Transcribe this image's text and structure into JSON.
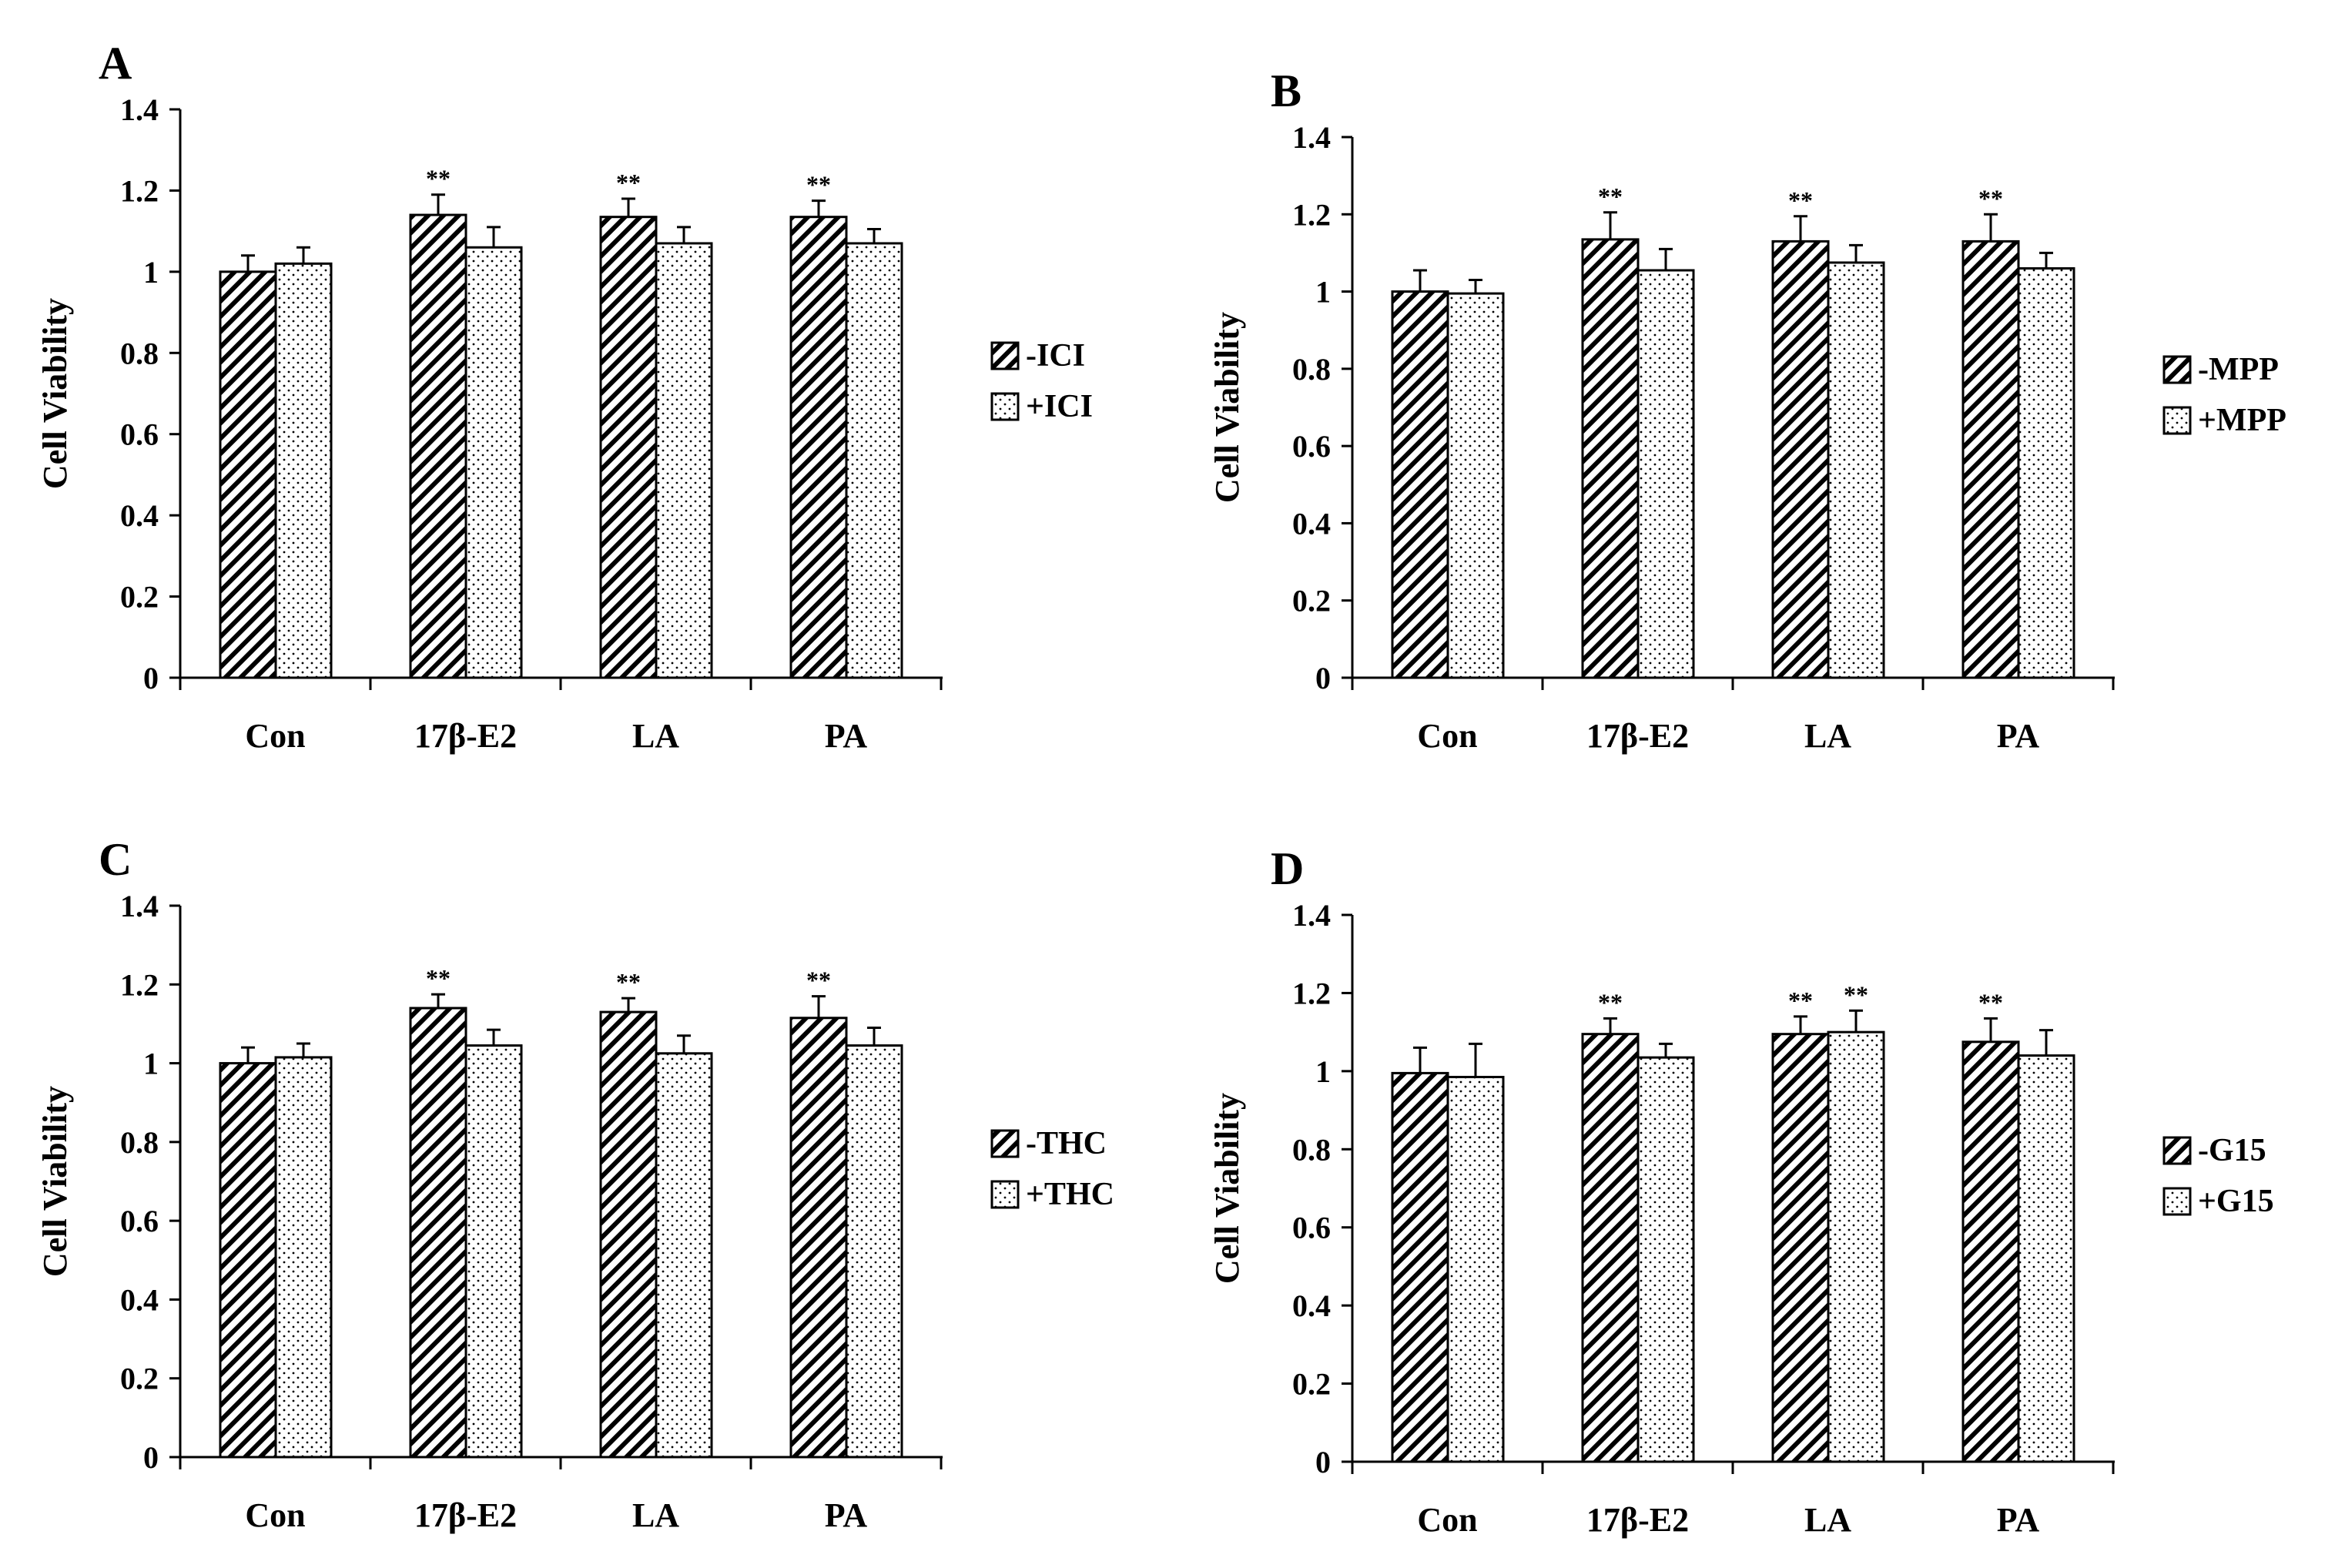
{
  "colors": {
    "bar_fill": "#ffffff",
    "stroke": "#000000",
    "hatch": "#000000",
    "dots": "#000000"
  },
  "chart_data": [
    {
      "panel_label": "A",
      "type": "bar",
      "categories": [
        "Con",
        "17β-E2",
        "LA",
        "PA"
      ],
      "ylabel": "Cell Viability",
      "xlabel": "",
      "ylim": [
        0,
        1.4
      ],
      "yticks": [
        "0",
        "0.2",
        "0.4",
        "0.6",
        "0.8",
        "1",
        "1.2",
        "1.4"
      ],
      "legend_position": "right",
      "series": [
        {
          "name": "-ICI",
          "pattern": "hatch",
          "values": [
            1.0,
            1.14,
            1.135,
            1.135
          ],
          "errors": [
            0.04,
            0.05,
            0.045,
            0.04
          ],
          "sig": [
            "",
            "**",
            "**",
            "**"
          ]
        },
        {
          "name": "+ICI",
          "pattern": "dots",
          "values": [
            1.02,
            1.06,
            1.07,
            1.07
          ],
          "errors": [
            0.04,
            0.05,
            0.04,
            0.035
          ],
          "sig": [
            "",
            "",
            "",
            ""
          ]
        }
      ]
    },
    {
      "panel_label": "B",
      "type": "bar",
      "categories": [
        "Con",
        "17β-E2",
        "LA",
        "PA"
      ],
      "ylabel": "Cell Viability",
      "xlabel": "",
      "ylim": [
        0,
        1.4
      ],
      "yticks": [
        "0",
        "0.2",
        "0.4",
        "0.6",
        "0.8",
        "1",
        "1.2",
        "1.4"
      ],
      "legend_position": "right",
      "series": [
        {
          "name": "-MPP",
          "pattern": "hatch",
          "values": [
            1.0,
            1.135,
            1.13,
            1.13
          ],
          "errors": [
            0.055,
            0.07,
            0.065,
            0.07
          ],
          "sig": [
            "",
            "**",
            "**",
            "**"
          ]
        },
        {
          "name": "+MPP",
          "pattern": "dots",
          "values": [
            0.995,
            1.055,
            1.075,
            1.06
          ],
          "errors": [
            0.035,
            0.055,
            0.045,
            0.04
          ],
          "sig": [
            "",
            "",
            "",
            ""
          ]
        }
      ]
    },
    {
      "panel_label": "C",
      "type": "bar",
      "categories": [
        "Con",
        "17β-E2",
        "LA",
        "PA"
      ],
      "ylabel": "Cell Viability",
      "xlabel": "",
      "ylim": [
        0,
        1.4
      ],
      "yticks": [
        "0",
        "0.2",
        "0.4",
        "0.6",
        "0.8",
        "1",
        "1.2",
        "1.4"
      ],
      "legend_position": "right",
      "series": [
        {
          "name": "-THC",
          "pattern": "hatch",
          "values": [
            1.0,
            1.14,
            1.13,
            1.115
          ],
          "errors": [
            0.04,
            0.035,
            0.035,
            0.055
          ],
          "sig": [
            "",
            "**",
            "**",
            "**"
          ]
        },
        {
          "name": "+THC",
          "pattern": "dots",
          "values": [
            1.015,
            1.045,
            1.025,
            1.045
          ],
          "errors": [
            0.035,
            0.04,
            0.045,
            0.045
          ],
          "sig": [
            "",
            "",
            "",
            ""
          ]
        }
      ]
    },
    {
      "panel_label": "D",
      "type": "bar",
      "categories": [
        "Con",
        "17β-E2",
        "LA",
        "PA"
      ],
      "ylabel": "Cell Viability",
      "xlabel": "",
      "ylim": [
        0,
        1.4
      ],
      "yticks": [
        "0",
        "0.2",
        "0.4",
        "0.6",
        "0.8",
        "1",
        "1.2",
        "1.4"
      ],
      "legend_position": "right",
      "series": [
        {
          "name": "-G15",
          "pattern": "hatch",
          "values": [
            0.995,
            1.095,
            1.095,
            1.075
          ],
          "errors": [
            0.065,
            0.04,
            0.045,
            0.06
          ],
          "sig": [
            "",
            "**",
            "**",
            "**"
          ]
        },
        {
          "name": "+G15",
          "pattern": "dots",
          "values": [
            0.985,
            1.035,
            1.1,
            1.04
          ],
          "errors": [
            0.085,
            0.035,
            0.055,
            0.065
          ],
          "sig": [
            "",
            "",
            "**",
            ""
          ]
        }
      ]
    }
  ]
}
